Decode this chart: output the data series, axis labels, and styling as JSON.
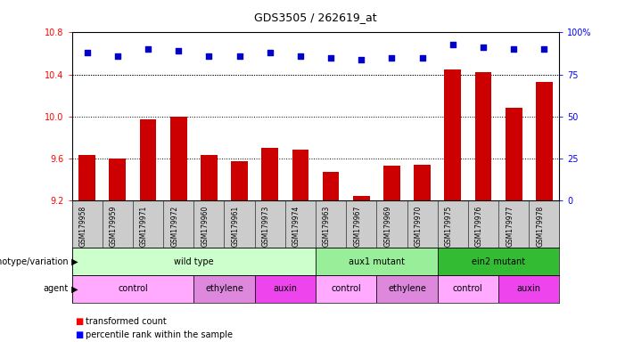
{
  "title": "GDS3505 / 262619_at",
  "samples": [
    "GSM179958",
    "GSM179959",
    "GSM179971",
    "GSM179972",
    "GSM179960",
    "GSM179961",
    "GSM179973",
    "GSM179974",
    "GSM179963",
    "GSM179967",
    "GSM179969",
    "GSM179970",
    "GSM179975",
    "GSM179976",
    "GSM179977",
    "GSM179978"
  ],
  "bar_values": [
    9.63,
    9.6,
    9.97,
    10.0,
    9.63,
    9.57,
    9.7,
    9.68,
    9.47,
    9.24,
    9.53,
    9.54,
    10.45,
    10.42,
    10.08,
    10.33
  ],
  "percentile_values": [
    88,
    86,
    90,
    89,
    86,
    86,
    88,
    86,
    85,
    84,
    85,
    85,
    93,
    91,
    90,
    90
  ],
  "bar_color": "#cc0000",
  "percentile_color": "#0000cc",
  "ylim_left": [
    9.2,
    10.8
  ],
  "ylim_right": [
    0,
    100
  ],
  "yticks_left": [
    9.2,
    9.6,
    10.0,
    10.4,
    10.8
  ],
  "yticks_right": [
    0,
    25,
    50,
    75,
    100
  ],
  "grid_values": [
    9.6,
    10.0,
    10.4
  ],
  "background_color": "#ffffff",
  "bar_bottom": 9.2,
  "xlabel_bg": "#cccccc",
  "genotype_groups": [
    {
      "label": "wild type",
      "start": 0,
      "end": 8,
      "color": "#ccffcc"
    },
    {
      "label": "aux1 mutant",
      "start": 8,
      "end": 12,
      "color": "#99ee99"
    },
    {
      "label": "ein2 mutant",
      "start": 12,
      "end": 16,
      "color": "#33bb33"
    }
  ],
  "agent_groups": [
    {
      "label": "control",
      "start": 0,
      "end": 4,
      "color": "#ffaaff"
    },
    {
      "label": "ethylene",
      "start": 4,
      "end": 6,
      "color": "#dd88dd"
    },
    {
      "label": "auxin",
      "start": 6,
      "end": 8,
      "color": "#ee44ee"
    },
    {
      "label": "control",
      "start": 8,
      "end": 10,
      "color": "#ffaaff"
    },
    {
      "label": "ethylene",
      "start": 10,
      "end": 12,
      "color": "#dd88dd"
    },
    {
      "label": "control",
      "start": 12,
      "end": 14,
      "color": "#ffaaff"
    },
    {
      "label": "auxin",
      "start": 14,
      "end": 16,
      "color": "#ee44ee"
    }
  ]
}
